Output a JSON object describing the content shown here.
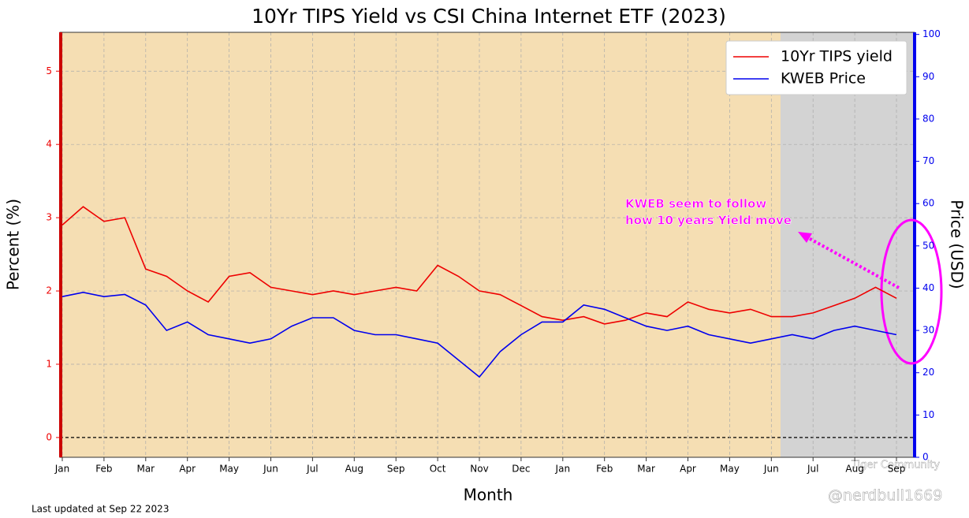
{
  "chart_data": {
    "type": "line",
    "title": "10Yr TIPS Yield vs CSI China Internet ETF (2023)",
    "xlabel": "Month",
    "ylabel": "Percent (%)",
    "y2label": "Price (USD)",
    "annotation": [
      "KWEB seem to follow",
      "how 10 years Yield move"
    ],
    "footer": "Last updated at Sep 22 2023",
    "watermark": [
      "Tiger Community",
      "@nerdbull1669"
    ],
    "categories": [
      "Jan",
      null,
      "Feb",
      null,
      "Mar",
      null,
      "Apr",
      null,
      "May",
      null,
      "Jun",
      null,
      "Jul",
      null,
      "Aug",
      null,
      "Sep",
      null,
      "Oct",
      null,
      "Nov",
      null,
      "Dec",
      null,
      "Jan",
      null,
      "Feb",
      null,
      "Mar",
      null,
      "Apr",
      null,
      "May",
      null,
      "Jun",
      null,
      "Jul",
      null,
      "Aug",
      null,
      "Sep"
    ],
    "series": [
      {
        "name": "10Yr TIPS yield",
        "color": "#ee0000",
        "axis": "y",
        "values": [
          2.9,
          3.15,
          2.95,
          3.0,
          2.3,
          2.2,
          2.0,
          1.85,
          2.2,
          2.25,
          2.05,
          2.0,
          1.95,
          2.0,
          1.95,
          2.0,
          2.05,
          2.0,
          2.35,
          2.2,
          2.0,
          1.95,
          1.8,
          1.65,
          1.6,
          1.65,
          1.55,
          1.6,
          1.7,
          1.65,
          1.85,
          1.75,
          1.7,
          1.75,
          1.65,
          1.65,
          1.7,
          1.8,
          1.9,
          2.05,
          1.9
        ]
      },
      {
        "name": "KWEB Price",
        "color": "#0000ee",
        "axis": "y2",
        "values": [
          38,
          39,
          38,
          38.5,
          36,
          30,
          32,
          29,
          28,
          27,
          28,
          31,
          33,
          33,
          30,
          29,
          29,
          28,
          27,
          23,
          19,
          25,
          29,
          32,
          32,
          36,
          35,
          33,
          31,
          30,
          31,
          29,
          28,
          27,
          28,
          29,
          28,
          30,
          31,
          30,
          29
        ]
      }
    ],
    "ylim": [
      -0.27,
      5.53
    ],
    "yticks": [
      0,
      1,
      2,
      3,
      4,
      5
    ],
    "y2lim": [
      0,
      100.5
    ],
    "y2ticks": [
      0,
      10,
      20,
      30,
      40,
      50,
      60,
      70,
      80,
      90,
      100
    ],
    "grid": true,
    "legend": "upper right"
  }
}
